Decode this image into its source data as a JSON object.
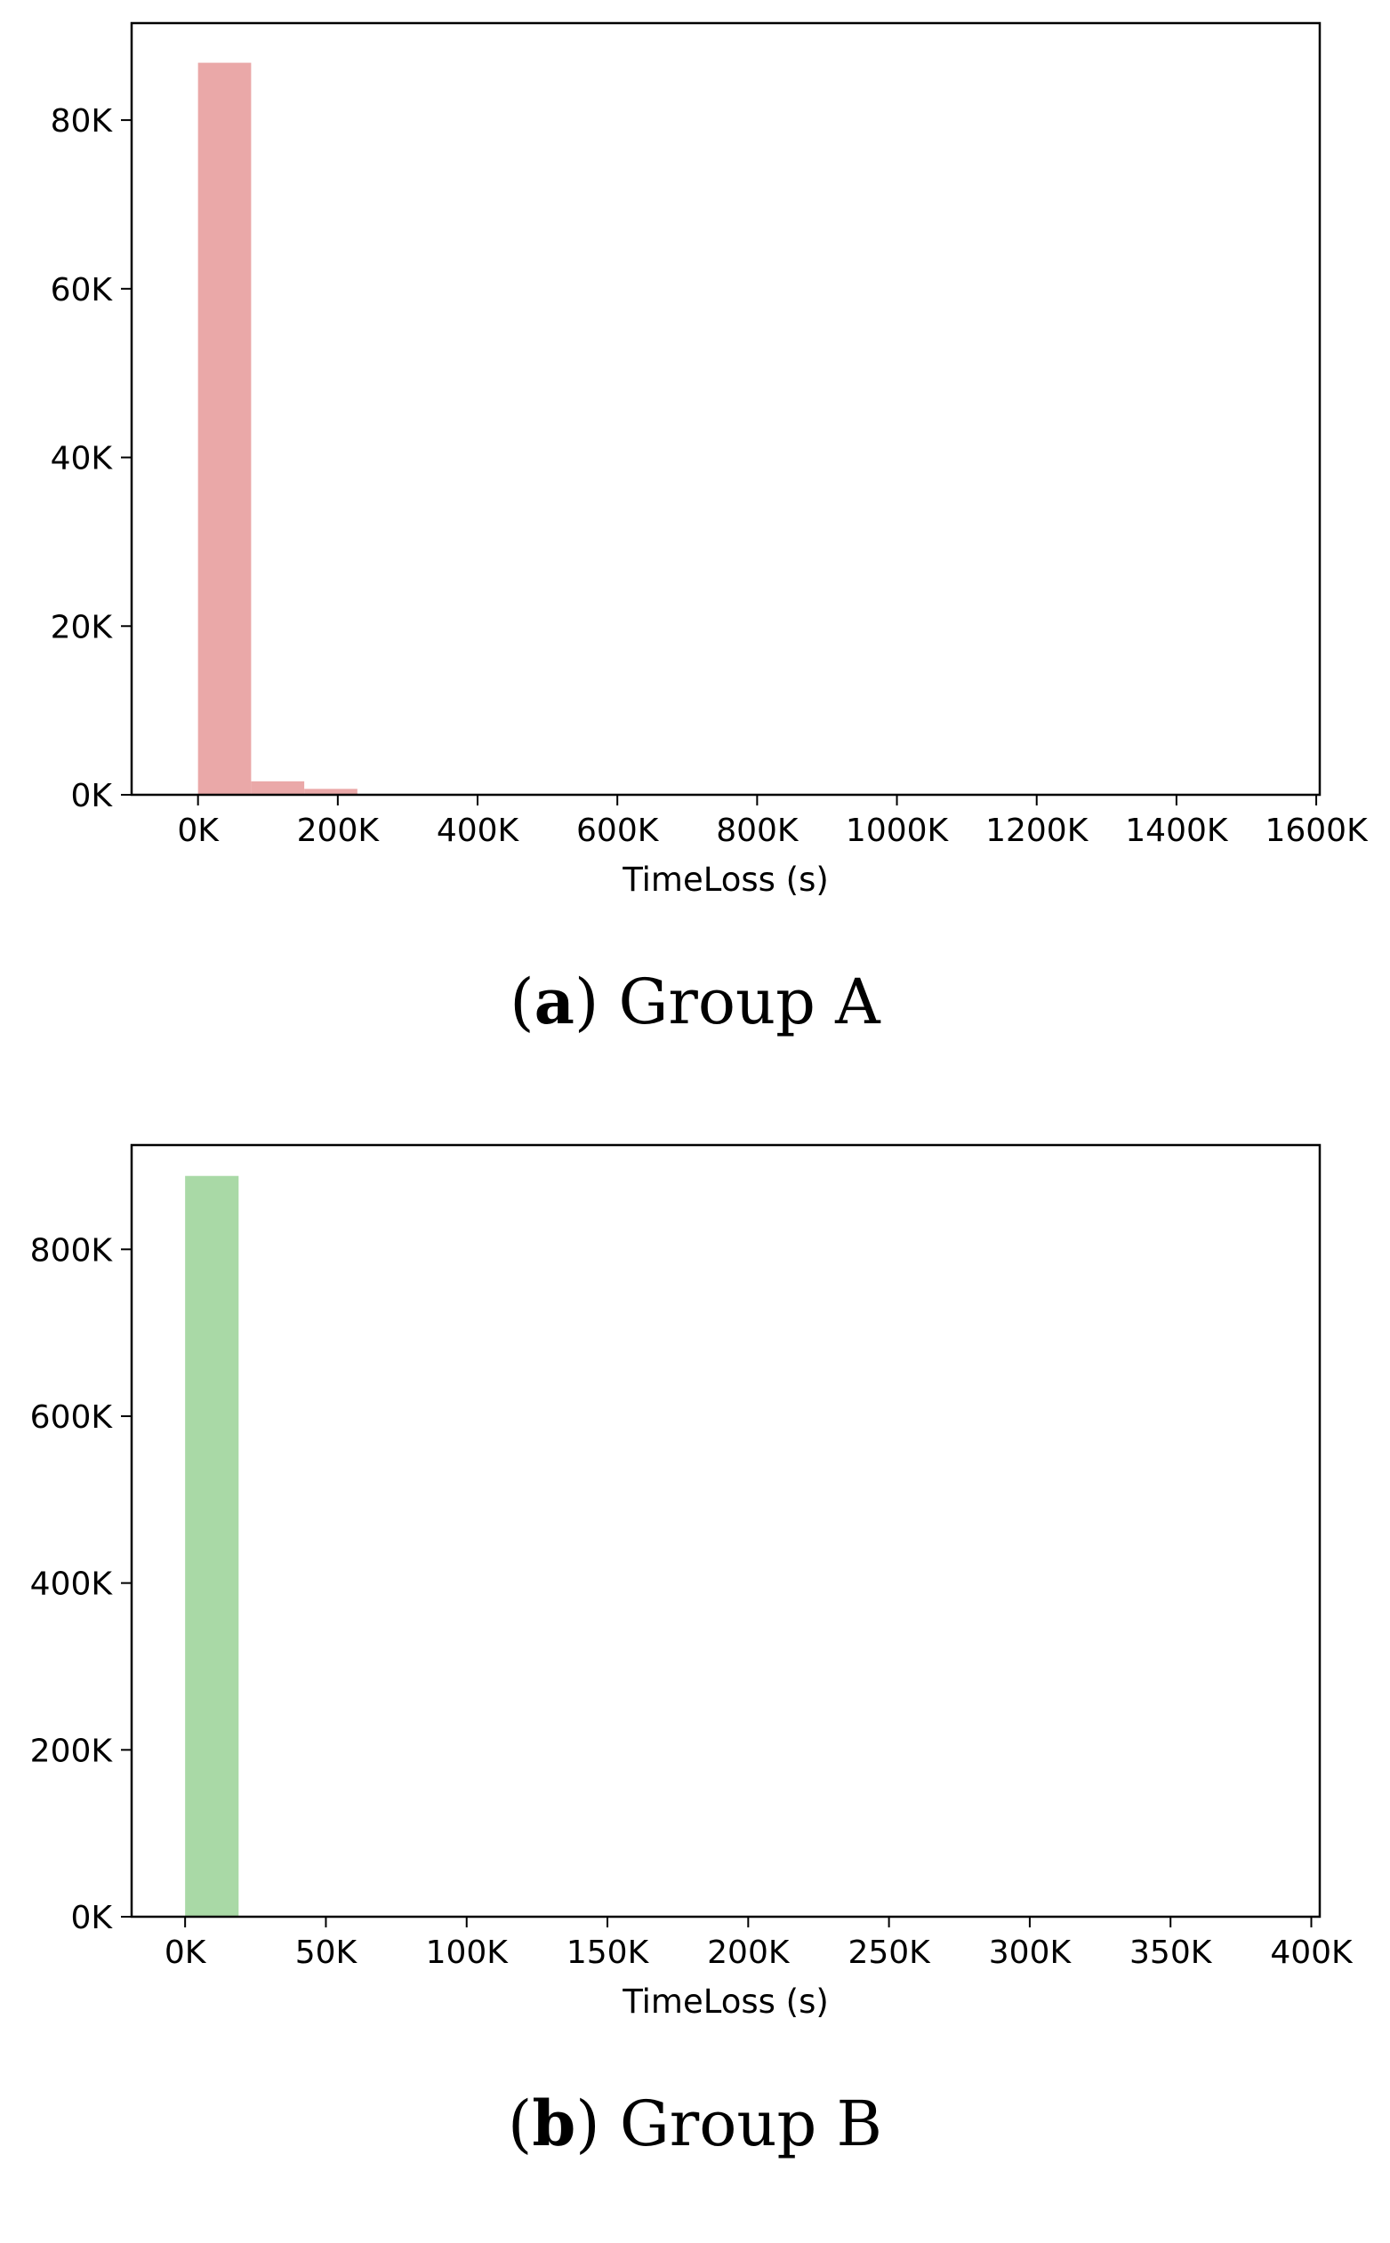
{
  "chart_data": [
    {
      "type": "bar",
      "xlabel": "TimeLoss (s)",
      "ylabel": "",
      "xlim": [
        -95000,
        1605000
      ],
      "ylim": [
        0,
        91500
      ],
      "xticks": [
        0,
        200000,
        400000,
        600000,
        800000,
        1000000,
        1200000,
        1400000,
        1600000
      ],
      "xtick_labels": [
        "0K",
        "200K",
        "400K",
        "600K",
        "800K",
        "1000K",
        "1200K",
        "1400K",
        "1600K"
      ],
      "yticks": [
        0,
        20000,
        40000,
        60000,
        80000
      ],
      "ytick_labels": [
        "0K",
        "20K",
        "40K",
        "60K",
        "80K"
      ],
      "bin_width": 76000,
      "bins": [
        {
          "x0": 0,
          "x1": 76000,
          "value": 86800
        },
        {
          "x0": 76000,
          "x1": 152000,
          "value": 1600
        },
        {
          "x0": 152000,
          "x1": 228000,
          "value": 700
        }
      ],
      "color": "#eaa8a8",
      "grid": false,
      "caption_label": "a",
      "caption_text": "Group A"
    },
    {
      "type": "bar",
      "xlabel": "TimeLoss (s)",
      "ylabel": "",
      "xlim": [
        -19000,
        403000
      ],
      "ylim": [
        0,
        925000
      ],
      "xticks": [
        0,
        50000,
        100000,
        150000,
        200000,
        250000,
        300000,
        350000,
        400000
      ],
      "xtick_labels": [
        "0K",
        "50K",
        "100K",
        "150K",
        "200K",
        "250K",
        "300K",
        "350K",
        "400K"
      ],
      "yticks": [
        0,
        200000,
        400000,
        600000,
        800000
      ],
      "ytick_labels": [
        "0K",
        "200K",
        "400K",
        "600K",
        "800K"
      ],
      "bin_width": 19000,
      "bins": [
        {
          "x0": 0,
          "x1": 19000,
          "value": 888000
        }
      ],
      "color": "#a9d9a6",
      "grid": false,
      "caption_label": "b",
      "caption_text": "Group B"
    }
  ]
}
